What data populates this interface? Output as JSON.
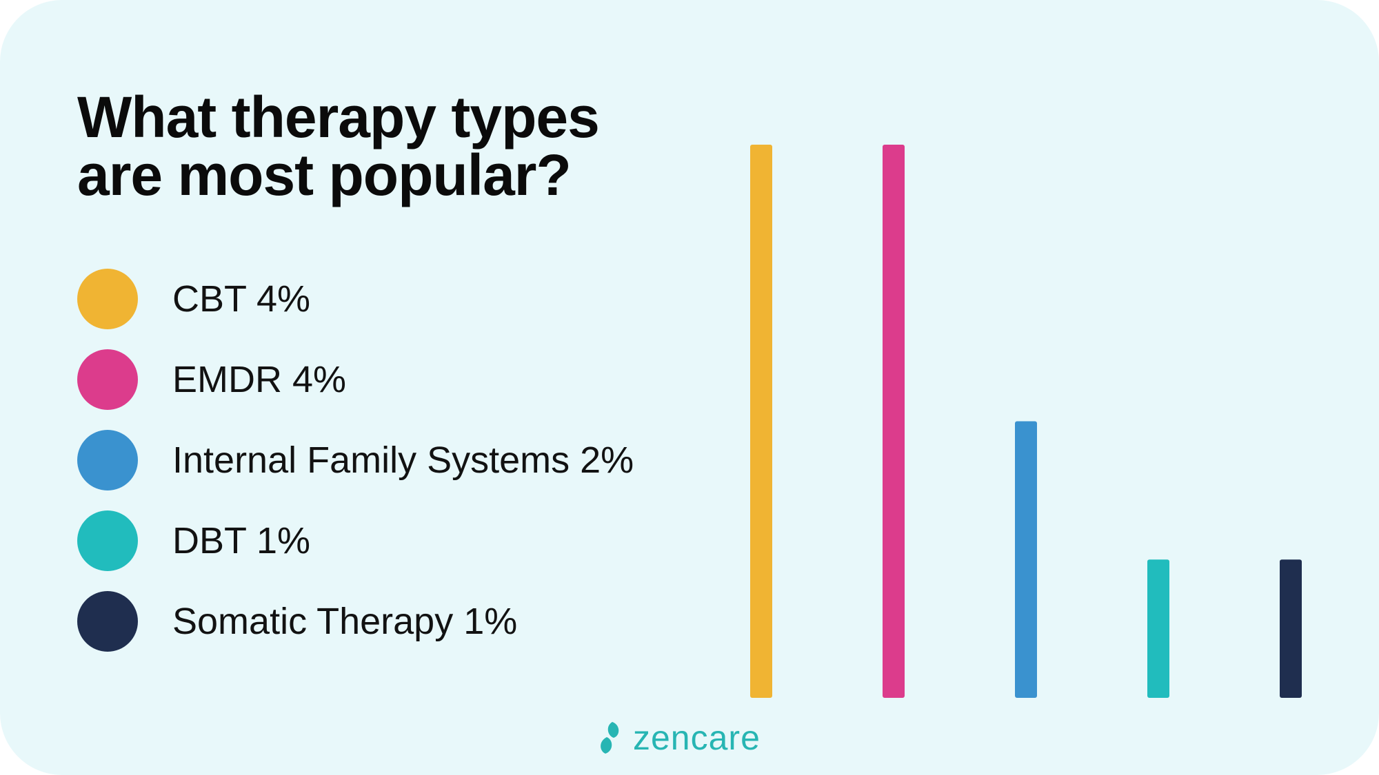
{
  "title_lines": [
    "What therapy types",
    "are most popular?"
  ],
  "colors": {
    "background": "#e8f8fa",
    "brand": "#27b5b3",
    "title": "#0b0b0b"
  },
  "chart_data": {
    "type": "bar",
    "categories": [
      "CBT",
      "EMDR",
      "Internal Family Systems",
      "DBT",
      "Somatic Therapy"
    ],
    "values": [
      4,
      4,
      2,
      1,
      1
    ],
    "unit": "%",
    "colors": [
      "#f0b433",
      "#dc3c8c",
      "#3a92cf",
      "#21bcbd",
      "#1f2e4f"
    ],
    "legend": [
      {
        "label": "CBT 4%",
        "color": "#f0b433"
      },
      {
        "label": "EMDR 4%",
        "color": "#dc3c8c"
      },
      {
        "label": "Internal Family Systems 2%",
        "color": "#3a92cf"
      },
      {
        "label": "DBT 1%",
        "color": "#21bcbd"
      },
      {
        "label": "Somatic Therapy 1%",
        "color": "#1f2e4f"
      }
    ],
    "legend_position": "left",
    "ylim": [
      0,
      4
    ],
    "grid": false
  },
  "brand": {
    "name": "zencare",
    "icon": "leaf-logo-icon"
  }
}
